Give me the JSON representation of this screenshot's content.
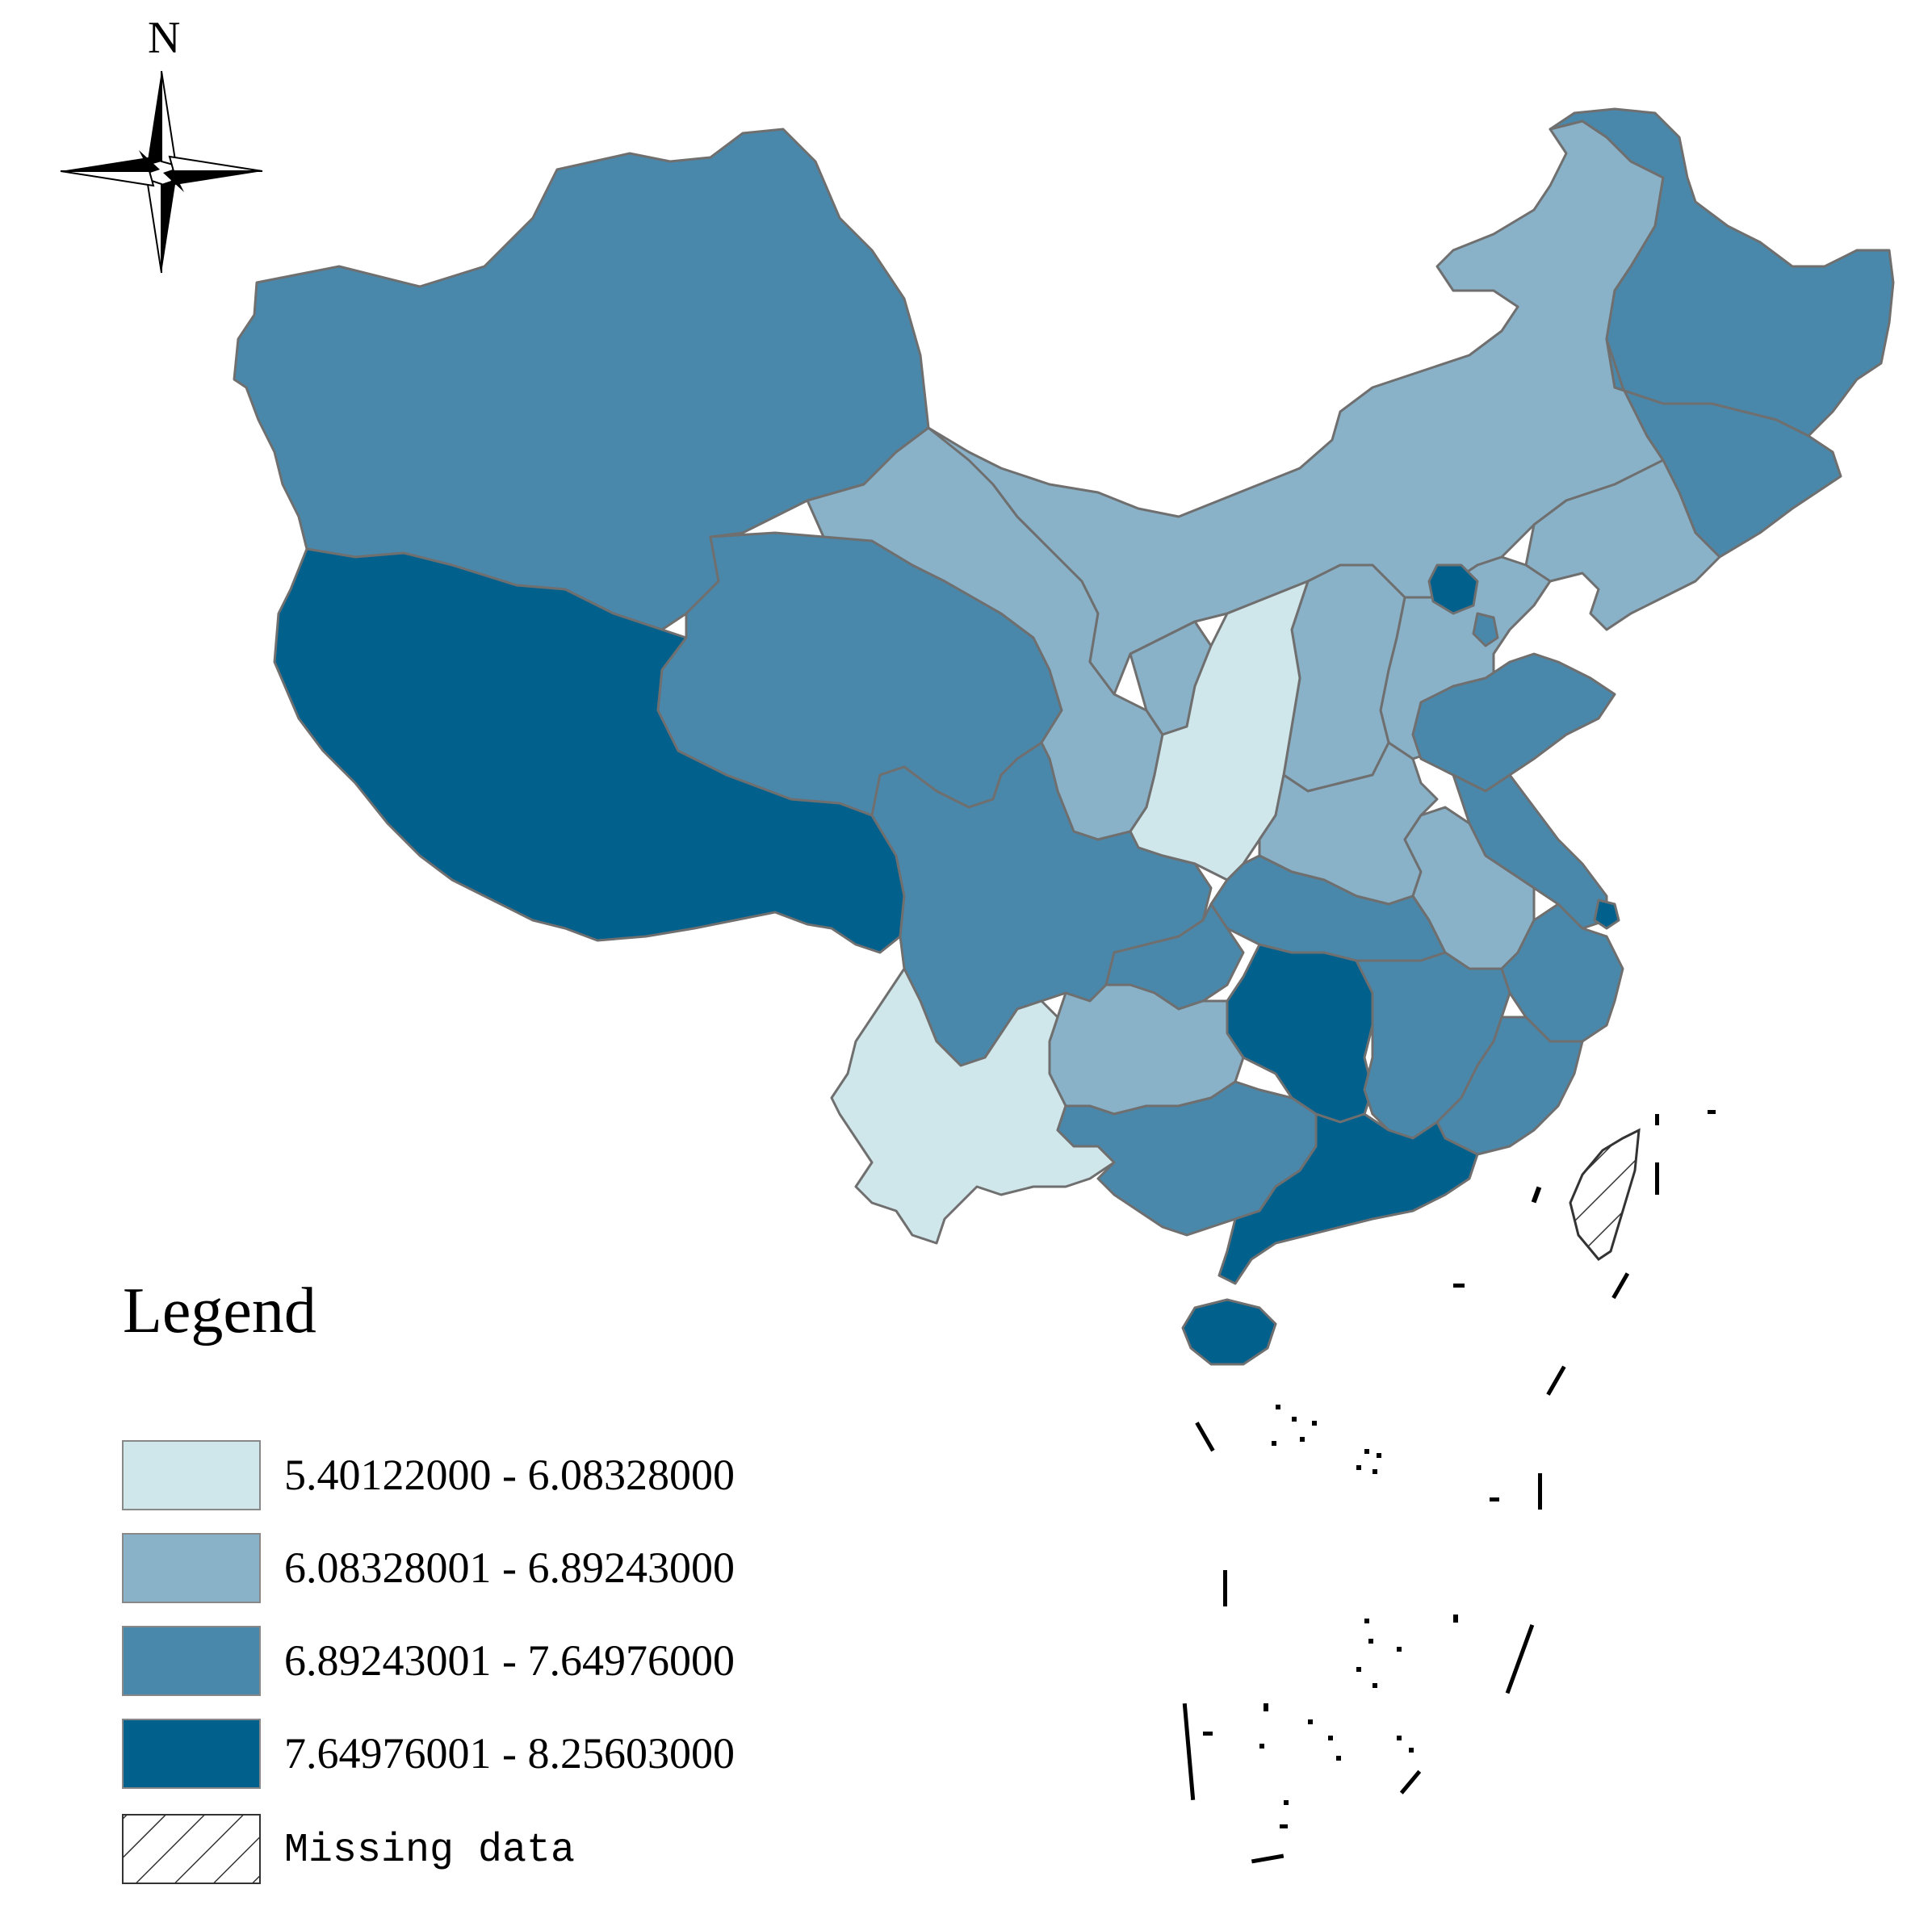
{
  "compass": {
    "north_label": "N"
  },
  "legend": {
    "title": "Legend",
    "classes": [
      {
        "label": "5.40122000 - 6.08328000",
        "color": "#cfe6ea"
      },
      {
        "label": "6.08328001 - 6.89243000",
        "color": "#89b1c7"
      },
      {
        "label": "6.89243001 - 7.64976000",
        "color": "#4a88ab"
      },
      {
        "label": "7.64976001 - 8.25603000",
        "color": "#02608d"
      }
    ],
    "missing_label": "Missing data"
  },
  "colors": {
    "class1": "#cfe6ea",
    "class2": "#89b1c7",
    "class3": "#4a88ab",
    "class4": "#02608d",
    "border": "#6f6f6f"
  }
}
